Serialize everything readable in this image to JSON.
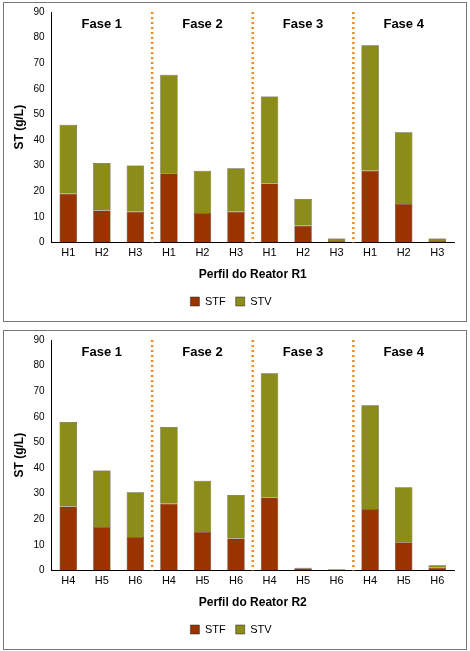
{
  "chart_data": [
    {
      "type": "bar",
      "stacked": true,
      "grid": false,
      "legend": "bottom",
      "y_label": "ST (g/L)",
      "x_label": "Perfil do Reator R1",
      "annotations": [
        "Fase 1",
        "Fase 2",
        "Fase 3",
        "Fase 4"
      ],
      "categories": [
        "H1",
        "H2",
        "H3",
        "H1",
        "H2",
        "H3",
        "H1",
        "H2",
        "H3",
        "H1",
        "H2",
        "H3"
      ],
      "series": [
        {
          "name": "STF",
          "color": "#993300",
          "values": [
            19,
            12.5,
            12,
            27,
            11.5,
            12,
            23,
            6.5,
            0.5,
            28,
            15,
            0.5
          ]
        },
        {
          "name": "STV",
          "color": "#8C8C1A",
          "values": [
            27,
            18.5,
            18,
            38.5,
            16.5,
            17,
            34,
            10.5,
            1,
            49,
            28,
            1
          ]
        }
      ],
      "ylim": [
        0,
        90
      ],
      "yticks": [
        0,
        10,
        20,
        30,
        40,
        50,
        60,
        70,
        80,
        90
      ]
    },
    {
      "type": "bar",
      "stacked": true,
      "grid": false,
      "legend": "bottom",
      "y_label": "ST (g/L)",
      "x_label": "Perfil do Reator R2",
      "annotations": [
        "Fase 1",
        "Fase 2",
        "Fase 3",
        "Fase 4"
      ],
      "categories": [
        "H4",
        "H5",
        "H6",
        "H4",
        "H5",
        "H6",
        "H4",
        "H5",
        "H6",
        "H4",
        "H5",
        "H6"
      ],
      "series": [
        {
          "name": "STF",
          "color": "#993300",
          "values": [
            25,
            17,
            13,
            26,
            15,
            12.5,
            28.5,
            0.8,
            0.4,
            24,
            11,
            1
          ]
        },
        {
          "name": "STV",
          "color": "#8C8C1A",
          "values": [
            33,
            22,
            17.5,
            30,
            20,
            17,
            48.5,
            0.2,
            0.1,
            40.5,
            21.5,
            1
          ]
        }
      ],
      "ylim": [
        0,
        90
      ],
      "yticks": [
        0,
        10,
        20,
        30,
        40,
        50,
        60,
        70,
        80,
        90
      ]
    }
  ]
}
